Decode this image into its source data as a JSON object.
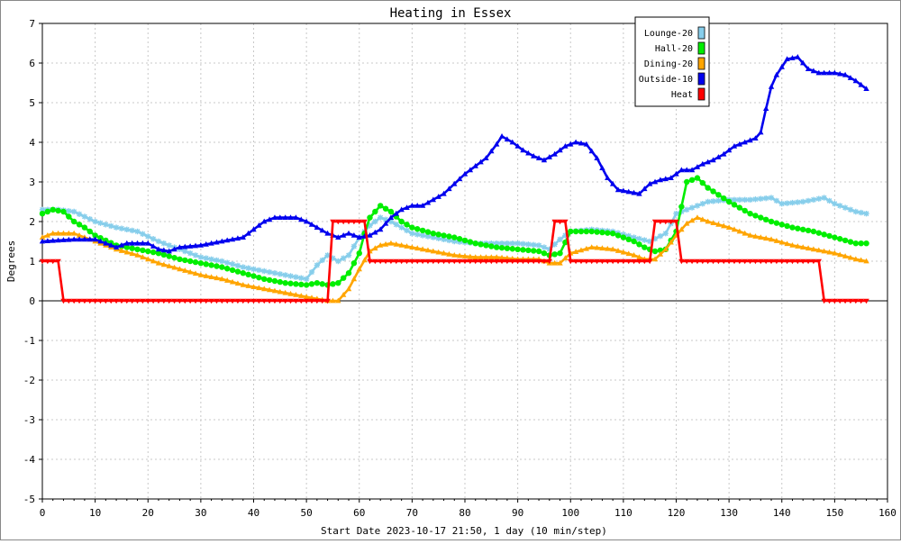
{
  "chart_data": {
    "type": "line",
    "title": "Heating in Essex",
    "xlabel": "Start Date 2023-10-17 21:50, 1 day (10 min/step)",
    "ylabel": "Degrees",
    "xlim": [
      0,
      160
    ],
    "ylim": [
      -5,
      7
    ],
    "xticks": [
      "0",
      "10",
      "20",
      "30",
      "40",
      "50",
      "60",
      "70",
      "80",
      "90",
      "100",
      "110",
      "120",
      "130",
      "140",
      "150",
      "160"
    ],
    "yticks": [
      "-5",
      "-4",
      "-3",
      "-2",
      "-1",
      "0",
      "1",
      "2",
      "3",
      "4",
      "5",
      "6",
      "7"
    ],
    "grid": true,
    "legend_position": "top-right",
    "series": [
      {
        "name": "Lounge-20",
        "color": "#87ceeb",
        "marker": "star",
        "points": [
          [
            0,
            2.3
          ],
          [
            3,
            2.3
          ],
          [
            6,
            2.25
          ],
          [
            10,
            2.0
          ],
          [
            14,
            1.85
          ],
          [
            18,
            1.75
          ],
          [
            22,
            1.5
          ],
          [
            26,
            1.3
          ],
          [
            30,
            1.1
          ],
          [
            34,
            1.0
          ],
          [
            38,
            0.85
          ],
          [
            42,
            0.75
          ],
          [
            46,
            0.65
          ],
          [
            48,
            0.6
          ],
          [
            50,
            0.55
          ],
          [
            52,
            0.9
          ],
          [
            54,
            1.15
          ],
          [
            56,
            1.0
          ],
          [
            58,
            1.15
          ],
          [
            60,
            1.6
          ],
          [
            62,
            1.9
          ],
          [
            64,
            2.1
          ],
          [
            66,
            2.0
          ],
          [
            68,
            1.85
          ],
          [
            70,
            1.7
          ],
          [
            74,
            1.6
          ],
          [
            78,
            1.5
          ],
          [
            82,
            1.45
          ],
          [
            86,
            1.45
          ],
          [
            90,
            1.45
          ],
          [
            94,
            1.4
          ],
          [
            96,
            1.3
          ],
          [
            98,
            1.55
          ],
          [
            100,
            1.75
          ],
          [
            104,
            1.8
          ],
          [
            108,
            1.75
          ],
          [
            112,
            1.6
          ],
          [
            115,
            1.5
          ],
          [
            118,
            1.7
          ],
          [
            120,
            2.2
          ],
          [
            122,
            2.3
          ],
          [
            126,
            2.5
          ],
          [
            130,
            2.55
          ],
          [
            134,
            2.55
          ],
          [
            138,
            2.6
          ],
          [
            140,
            2.45
          ],
          [
            144,
            2.5
          ],
          [
            148,
            2.6
          ],
          [
            150,
            2.45
          ],
          [
            154,
            2.25
          ],
          [
            156,
            2.2
          ]
        ]
      },
      {
        "name": "Hall-20",
        "color": "#00ee00",
        "marker": "circle",
        "points": [
          [
            0,
            2.2
          ],
          [
            2,
            2.3
          ],
          [
            4,
            2.25
          ],
          [
            6,
            2.0
          ],
          [
            8,
            1.85
          ],
          [
            10,
            1.65
          ],
          [
            14,
            1.4
          ],
          [
            18,
            1.3
          ],
          [
            22,
            1.2
          ],
          [
            26,
            1.05
          ],
          [
            30,
            0.95
          ],
          [
            34,
            0.85
          ],
          [
            38,
            0.7
          ],
          [
            42,
            0.55
          ],
          [
            46,
            0.45
          ],
          [
            50,
            0.4
          ],
          [
            52,
            0.45
          ],
          [
            54,
            0.4
          ],
          [
            56,
            0.45
          ],
          [
            58,
            0.7
          ],
          [
            60,
            1.2
          ],
          [
            61,
            1.7
          ],
          [
            62,
            2.1
          ],
          [
            64,
            2.4
          ],
          [
            66,
            2.25
          ],
          [
            68,
            2.0
          ],
          [
            70,
            1.85
          ],
          [
            74,
            1.7
          ],
          [
            78,
            1.6
          ],
          [
            82,
            1.45
          ],
          [
            86,
            1.35
          ],
          [
            90,
            1.3
          ],
          [
            94,
            1.25
          ],
          [
            96,
            1.15
          ],
          [
            98,
            1.2
          ],
          [
            100,
            1.75
          ],
          [
            104,
            1.75
          ],
          [
            108,
            1.7
          ],
          [
            112,
            1.5
          ],
          [
            114,
            1.35
          ],
          [
            116,
            1.25
          ],
          [
            118,
            1.3
          ],
          [
            120,
            1.75
          ],
          [
            122,
            3.0
          ],
          [
            124,
            3.1
          ],
          [
            126,
            2.85
          ],
          [
            130,
            2.5
          ],
          [
            134,
            2.2
          ],
          [
            138,
            2.0
          ],
          [
            142,
            1.85
          ],
          [
            146,
            1.75
          ],
          [
            150,
            1.6
          ],
          [
            154,
            1.45
          ],
          [
            156,
            1.45
          ]
        ]
      },
      {
        "name": "Dining-20",
        "color": "#ffa500",
        "marker": "triangle",
        "points": [
          [
            0,
            1.6
          ],
          [
            2,
            1.7
          ],
          [
            6,
            1.7
          ],
          [
            8,
            1.6
          ],
          [
            10,
            1.5
          ],
          [
            14,
            1.3
          ],
          [
            18,
            1.15
          ],
          [
            22,
            0.95
          ],
          [
            26,
            0.8
          ],
          [
            30,
            0.65
          ],
          [
            34,
            0.55
          ],
          [
            38,
            0.4
          ],
          [
            42,
            0.3
          ],
          [
            46,
            0.2
          ],
          [
            50,
            0.1
          ],
          [
            52,
            0.05
          ],
          [
            54,
            0.0
          ],
          [
            56,
            0.0
          ],
          [
            58,
            0.3
          ],
          [
            60,
            0.8
          ],
          [
            62,
            1.25
          ],
          [
            64,
            1.4
          ],
          [
            66,
            1.45
          ],
          [
            70,
            1.35
          ],
          [
            74,
            1.25
          ],
          [
            78,
            1.15
          ],
          [
            82,
            1.1
          ],
          [
            86,
            1.1
          ],
          [
            90,
            1.05
          ],
          [
            94,
            1.05
          ],
          [
            96,
            0.95
          ],
          [
            98,
            0.95
          ],
          [
            100,
            1.2
          ],
          [
            104,
            1.35
          ],
          [
            108,
            1.3
          ],
          [
            112,
            1.15
          ],
          [
            114,
            1.05
          ],
          [
            116,
            1.05
          ],
          [
            118,
            1.3
          ],
          [
            120,
            1.65
          ],
          [
            122,
            1.95
          ],
          [
            124,
            2.1
          ],
          [
            126,
            2.0
          ],
          [
            130,
            1.85
          ],
          [
            134,
            1.65
          ],
          [
            138,
            1.55
          ],
          [
            142,
            1.4
          ],
          [
            146,
            1.3
          ],
          [
            150,
            1.2
          ],
          [
            154,
            1.05
          ],
          [
            156,
            1.0
          ]
        ]
      },
      {
        "name": "Outside-10",
        "color": "#0000ee",
        "marker": "triangle",
        "points": [
          [
            0,
            1.5
          ],
          [
            6,
            1.55
          ],
          [
            10,
            1.55
          ],
          [
            12,
            1.45
          ],
          [
            14,
            1.35
          ],
          [
            16,
            1.45
          ],
          [
            20,
            1.45
          ],
          [
            22,
            1.3
          ],
          [
            24,
            1.25
          ],
          [
            26,
            1.35
          ],
          [
            30,
            1.4
          ],
          [
            34,
            1.5
          ],
          [
            38,
            1.6
          ],
          [
            40,
            1.8
          ],
          [
            42,
            2.0
          ],
          [
            44,
            2.1
          ],
          [
            48,
            2.1
          ],
          [
            50,
            2.0
          ],
          [
            52,
            1.85
          ],
          [
            54,
            1.7
          ],
          [
            56,
            1.6
          ],
          [
            58,
            1.7
          ],
          [
            60,
            1.6
          ],
          [
            62,
            1.65
          ],
          [
            64,
            1.8
          ],
          [
            66,
            2.1
          ],
          [
            68,
            2.3
          ],
          [
            70,
            2.4
          ],
          [
            72,
            2.4
          ],
          [
            74,
            2.55
          ],
          [
            76,
            2.7
          ],
          [
            78,
            2.95
          ],
          [
            80,
            3.2
          ],
          [
            82,
            3.4
          ],
          [
            84,
            3.6
          ],
          [
            86,
            3.95
          ],
          [
            87,
            4.15
          ],
          [
            89,
            4.0
          ],
          [
            91,
            3.8
          ],
          [
            93,
            3.65
          ],
          [
            95,
            3.55
          ],
          [
            97,
            3.7
          ],
          [
            99,
            3.9
          ],
          [
            101,
            4.0
          ],
          [
            103,
            3.95
          ],
          [
            105,
            3.6
          ],
          [
            107,
            3.1
          ],
          [
            109,
            2.8
          ],
          [
            111,
            2.75
          ],
          [
            113,
            2.7
          ],
          [
            115,
            2.95
          ],
          [
            117,
            3.05
          ],
          [
            119,
            3.1
          ],
          [
            121,
            3.3
          ],
          [
            123,
            3.3
          ],
          [
            125,
            3.45
          ],
          [
            127,
            3.55
          ],
          [
            129,
            3.7
          ],
          [
            131,
            3.9
          ],
          [
            133,
            4.0
          ],
          [
            135,
            4.1
          ],
          [
            136,
            4.25
          ],
          [
            137,
            4.85
          ],
          [
            138,
            5.4
          ],
          [
            139,
            5.7
          ],
          [
            141,
            6.1
          ],
          [
            143,
            6.15
          ],
          [
            145,
            5.85
          ],
          [
            147,
            5.75
          ],
          [
            150,
            5.75
          ],
          [
            152,
            5.7
          ],
          [
            154,
            5.55
          ],
          [
            156,
            5.35
          ]
        ]
      },
      {
        "name": "Heat",
        "color": "#ff0000",
        "marker": "triangle-down",
        "points": [
          [
            0,
            1
          ],
          [
            3,
            1
          ],
          [
            4,
            0
          ],
          [
            54,
            0
          ],
          [
            55,
            2
          ],
          [
            61,
            2
          ],
          [
            62,
            1
          ],
          [
            96,
            1
          ],
          [
            97,
            2
          ],
          [
            99,
            2
          ],
          [
            100,
            1
          ],
          [
            115,
            1
          ],
          [
            116,
            2
          ],
          [
            120,
            2
          ],
          [
            121,
            1
          ],
          [
            147,
            1
          ],
          [
            148,
            0
          ],
          [
            156,
            0
          ]
        ]
      }
    ]
  }
}
